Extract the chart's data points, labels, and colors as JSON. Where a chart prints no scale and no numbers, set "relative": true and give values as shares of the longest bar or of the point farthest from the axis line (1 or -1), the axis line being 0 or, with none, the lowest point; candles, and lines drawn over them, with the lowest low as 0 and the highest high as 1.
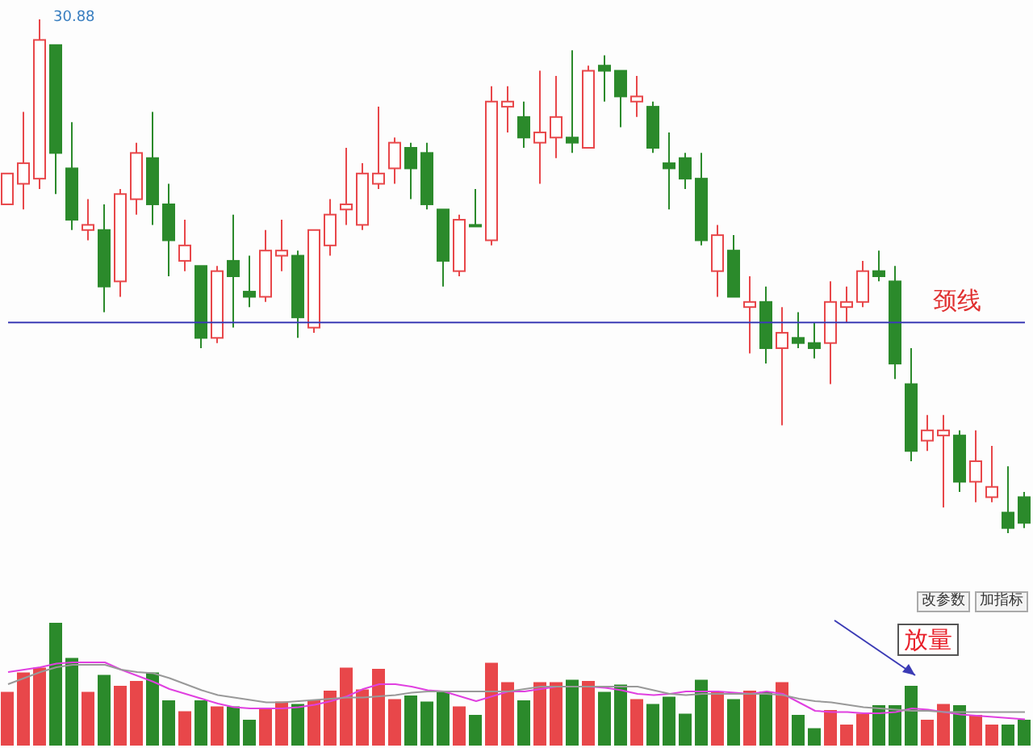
{
  "chart_data": [
    {
      "type": "candlestick",
      "relative": true,
      "tick_labels": false,
      "categories": [
        null,
        null,
        null,
        null,
        null,
        null,
        null,
        null,
        null,
        null,
        null,
        null,
        null,
        null,
        null,
        null,
        null,
        null,
        null,
        null,
        null,
        null,
        null,
        null,
        null,
        null,
        null,
        null,
        null,
        null,
        null,
        null,
        null,
        null,
        null,
        null,
        null,
        null,
        null,
        null,
        null,
        null,
        null,
        null,
        null,
        null,
        null,
        null,
        null,
        null,
        null,
        null,
        null,
        null,
        null,
        null,
        null,
        null,
        null,
        null,
        null,
        null,
        null,
        null
      ],
      "ohlc": [
        [
          0.64,
          0.7,
          0.64,
          0.7
        ],
        [
          0.68,
          0.82,
          0.63,
          0.72
        ],
        [
          0.69,
          1,
          0.67,
          0.96
        ],
        [
          0.95,
          0.95,
          0.66,
          0.74
        ],
        [
          0.71,
          0.8,
          0.59,
          0.61
        ],
        [
          0.59,
          0.65,
          0.57,
          0.6
        ],
        [
          0.59,
          0.64,
          0.43,
          0.48
        ],
        [
          0.49,
          0.67,
          0.46,
          0.66
        ],
        [
          0.65,
          0.76,
          0.62,
          0.74
        ],
        [
          0.73,
          0.82,
          0.6,
          0.64
        ],
        [
          0.64,
          0.68,
          0.5,
          0.57
        ],
        [
          0.53,
          0.61,
          0.51,
          0.56
        ],
        [
          0.52,
          0.52,
          0.36,
          0.38
        ],
        [
          0.38,
          0.52,
          0.37,
          0.51
        ],
        [
          0.53,
          0.62,
          0.4,
          0.5
        ],
        [
          0.47,
          0.54,
          0.44,
          0.46
        ],
        [
          0.46,
          0.59,
          0.45,
          0.55
        ],
        [
          0.54,
          0.61,
          0.51,
          0.55
        ],
        [
          0.54,
          0.55,
          0.38,
          0.42
        ],
        [
          0.4,
          0.59,
          0.39,
          0.59
        ],
        [
          0.56,
          0.65,
          0.54,
          0.62
        ],
        [
          0.63,
          0.75,
          0.6,
          0.64
        ],
        [
          0.6,
          0.72,
          0.59,
          0.7
        ],
        [
          0.68,
          0.83,
          0.67,
          0.7
        ],
        [
          0.71,
          0.77,
          0.68,
          0.76
        ],
        [
          0.75,
          0.76,
          0.65,
          0.71
        ],
        [
          0.74,
          0.76,
          0.63,
          0.64
        ],
        [
          0.63,
          0.63,
          0.48,
          0.53
        ],
        [
          0.51,
          0.62,
          0.5,
          0.61
        ],
        [
          0.6,
          0.67,
          0.6,
          0.6
        ],
        [
          0.57,
          0.87,
          0.56,
          0.84
        ],
        [
          0.83,
          0.87,
          0.78,
          0.84
        ],
        [
          0.81,
          0.84,
          0.75,
          0.77
        ],
        [
          0.76,
          0.9,
          0.68,
          0.78
        ],
        [
          0.77,
          0.89,
          0.73,
          0.81
        ],
        [
          0.77,
          0.94,
          0.74,
          0.76
        ],
        [
          0.75,
          0.91,
          0.75,
          0.9
        ],
        [
          0.91,
          0.93,
          0.84,
          0.9
        ],
        [
          0.9,
          0.9,
          0.79,
          0.85
        ],
        [
          0.84,
          0.89,
          0.81,
          0.85
        ],
        [
          0.83,
          0.84,
          0.74,
          0.75
        ],
        [
          0.72,
          0.78,
          0.63,
          0.71
        ],
        [
          0.73,
          0.74,
          0.67,
          0.69
        ],
        [
          0.69,
          0.74,
          0.56,
          0.57
        ],
        [
          0.51,
          0.6,
          0.46,
          0.58
        ],
        [
          0.55,
          0.58,
          0.46,
          0.46
        ],
        [
          0.44,
          0.5,
          0.35,
          0.45
        ],
        [
          0.45,
          0.48,
          0.33,
          0.36
        ],
        [
          0.36,
          0.44,
          0.21,
          0.39
        ],
        [
          0.38,
          0.43,
          0.36,
          0.37
        ],
        [
          0.37,
          0.41,
          0.34,
          0.36
        ],
        [
          0.37,
          0.49,
          0.29,
          0.45
        ],
        [
          0.44,
          0.48,
          0.41,
          0.45
        ],
        [
          0.45,
          0.53,
          0.44,
          0.51
        ],
        [
          0.51,
          0.55,
          0.49,
          0.5
        ],
        [
          0.49,
          0.52,
          0.3,
          0.33
        ],
        [
          0.29,
          0.36,
          0.14,
          0.16
        ],
        [
          0.18,
          0.23,
          0.16,
          0.2
        ],
        [
          0.19,
          0.23,
          0.05,
          0.2
        ],
        [
          0.19,
          0.2,
          0.08,
          0.1
        ],
        [
          0.1,
          0.2,
          0.06,
          0.14
        ],
        [
          0.07,
          0.17,
          0.06,
          0.09
        ],
        [
          0.04,
          0.13,
          0,
          0.01
        ],
        [
          0.07,
          0.08,
          0.01,
          0.02
        ]
      ],
      "colors": [
        "#e8474a",
        "#e8474a",
        "#e8474a",
        "#2b8a2b",
        "#2b8a2b",
        "#e8474a",
        "#2b8a2b",
        "#e8474a",
        "#e8474a",
        "#2b8a2b",
        "#2b8a2b",
        "#e8474a",
        "#2b8a2b",
        "#e8474a",
        "#2b8a2b",
        "#2b8a2b",
        "#e8474a",
        "#e8474a",
        "#2b8a2b",
        "#e8474a",
        "#e8474a",
        "#e8474a",
        "#e8474a",
        "#e8474a",
        "#e8474a",
        "#2b8a2b",
        "#2b8a2b",
        "#2b8a2b",
        "#e8474a",
        "#2b8a2b",
        "#e8474a",
        "#e8474a",
        "#2b8a2b",
        "#e8474a",
        "#e8474a",
        "#2b8a2b",
        "#e8474a",
        "#2b8a2b",
        "#2b8a2b",
        "#e8474a",
        "#2b8a2b",
        "#2b8a2b",
        "#2b8a2b",
        "#2b8a2b",
        "#e8474a",
        "#2b8a2b",
        "#e8474a",
        "#2b8a2b",
        "#e8474a",
        "#2b8a2b",
        "#2b8a2b",
        "#e8474a",
        "#e8474a",
        "#e8474a",
        "#2b8a2b",
        "#2b8a2b",
        "#2b8a2b",
        "#e8474a",
        "#e8474a",
        "#2b8a2b",
        "#e8474a",
        "#e8474a",
        "#2b8a2b",
        "#2b8a2b"
      ],
      "ref_lines": [
        {
          "axis": "y",
          "value": 0.41,
          "label": "颈线",
          "color": "#3b3bb5"
        }
      ],
      "annotations": [
        "30.88"
      ]
    },
    {
      "type": "bar",
      "relative": true,
      "tick_labels": false,
      "categories": [
        null,
        null,
        null,
        null,
        null,
        null,
        null,
        null,
        null,
        null,
        null,
        null,
        null,
        null,
        null,
        null,
        null,
        null,
        null,
        null,
        null,
        null,
        null,
        null,
        null,
        null,
        null,
        null,
        null,
        null,
        null,
        null,
        null,
        null,
        null,
        null,
        null,
        null,
        null,
        null,
        null,
        null,
        null,
        null,
        null,
        null,
        null,
        null,
        null,
        null,
        null,
        null,
        null,
        null,
        null,
        null,
        null,
        null,
        null,
        null,
        null,
        null,
        null,
        null
      ],
      "series": [
        {
          "type": "bar",
          "colors": [
            "#e8474a",
            "#e8474a",
            "#e8474a",
            "#2b8a2b",
            "#2b8a2b",
            "#e8474a",
            "#2b8a2b",
            "#e8474a",
            "#e8474a",
            "#2b8a2b",
            "#2b8a2b",
            "#e8474a",
            "#2b8a2b",
            "#e8474a",
            "#2b8a2b",
            "#2b8a2b",
            "#e8474a",
            "#e8474a",
            "#2b8a2b",
            "#e8474a",
            "#e8474a",
            "#e8474a",
            "#e8474a",
            "#e8474a",
            "#e8474a",
            "#2b8a2b",
            "#2b8a2b",
            "#2b8a2b",
            "#e8474a",
            "#2b8a2b",
            "#e8474a",
            "#e8474a",
            "#2b8a2b",
            "#e8474a",
            "#e8474a",
            "#2b8a2b",
            "#e8474a",
            "#2b8a2b",
            "#2b8a2b",
            "#e8474a",
            "#2b8a2b",
            "#2b8a2b",
            "#2b8a2b",
            "#2b8a2b",
            "#e8474a",
            "#2b8a2b",
            "#e8474a",
            "#2b8a2b",
            "#e8474a",
            "#2b8a2b",
            "#2b8a2b",
            "#e8474a",
            "#e8474a",
            "#e8474a",
            "#2b8a2b",
            "#2b8a2b",
            "#2b8a2b",
            "#e8474a",
            "#e8474a",
            "#2b8a2b",
            "#e8474a",
            "#e8474a",
            "#2b8a2b",
            "#2b8a2b"
          ],
          "values": [
            0.43,
            0.59,
            0.63,
            1,
            0.71,
            0.43,
            0.57,
            0.48,
            0.52,
            0.59,
            0.36,
            0.27,
            0.36,
            0.31,
            0.31,
            0.2,
            0.29,
            0.35,
            0.33,
            0.36,
            0.44,
            0.63,
            0.45,
            0.62,
            0.37,
            0.4,
            0.35,
            0.44,
            0.31,
            0.24,
            0.67,
            0.51,
            0.36,
            0.51,
            0.51,
            0.53,
            0.52,
            0.43,
            0.49,
            0.37,
            0.33,
            0.39,
            0.25,
            0.53,
            0.43,
            0.37,
            0.44,
            0.43,
            0.51,
            0.24,
            0.13,
            0.28,
            0.16,
            0.25,
            0.32,
            0.32,
            0.48,
            0.2,
            0.33,
            0.32,
            0.24,
            0.16,
            0.16,
            0.2
          ]
        },
        {
          "type": "line",
          "color": "#e040e0",
          "values": [
            0.6,
            0.62,
            0.64,
            0.67,
            0.68,
            0.68,
            0.68,
            0.62,
            0.57,
            0.52,
            0.46,
            0.42,
            0.38,
            0.34,
            0.31,
            0.3,
            0.3,
            0.3,
            0.31,
            0.33,
            0.36,
            0.4,
            0.46,
            0.5,
            0.5,
            0.48,
            0.45,
            0.44,
            0.4,
            0.36,
            0.4,
            0.44,
            0.44,
            0.46,
            0.48,
            0.48,
            0.48,
            0.47,
            0.45,
            0.42,
            0.41,
            0.42,
            0.44,
            0.44,
            0.44,
            0.43,
            0.42,
            0.44,
            0.42,
            0.35,
            0.28,
            0.27,
            0.27,
            0.26,
            0.26,
            0.27,
            0.3,
            0.29,
            0.27,
            0.25,
            0.24,
            0.23,
            0.22,
            0.21
          ]
        },
        {
          "type": "line",
          "color": "#999999",
          "values": [
            0.5,
            0.55,
            0.6,
            0.64,
            0.66,
            0.66,
            0.66,
            0.62,
            0.6,
            0.59,
            0.55,
            0.5,
            0.45,
            0.41,
            0.39,
            0.37,
            0.35,
            0.35,
            0.36,
            0.37,
            0.38,
            0.39,
            0.39,
            0.4,
            0.41,
            0.43,
            0.44,
            0.44,
            0.44,
            0.44,
            0.44,
            0.44,
            0.46,
            0.48,
            0.48,
            0.48,
            0.48,
            0.48,
            0.48,
            0.48,
            0.45,
            0.42,
            0.41,
            0.42,
            0.42,
            0.42,
            0.42,
            0.42,
            0.41,
            0.38,
            0.36,
            0.35,
            0.33,
            0.31,
            0.3,
            0.29,
            0.28,
            0.28,
            0.27,
            0.27,
            0.27,
            0.27,
            0.27,
            0.27
          ]
        }
      ],
      "annotations": [
        "放量",
        "改参数",
        "加指标"
      ]
    }
  ]
}
